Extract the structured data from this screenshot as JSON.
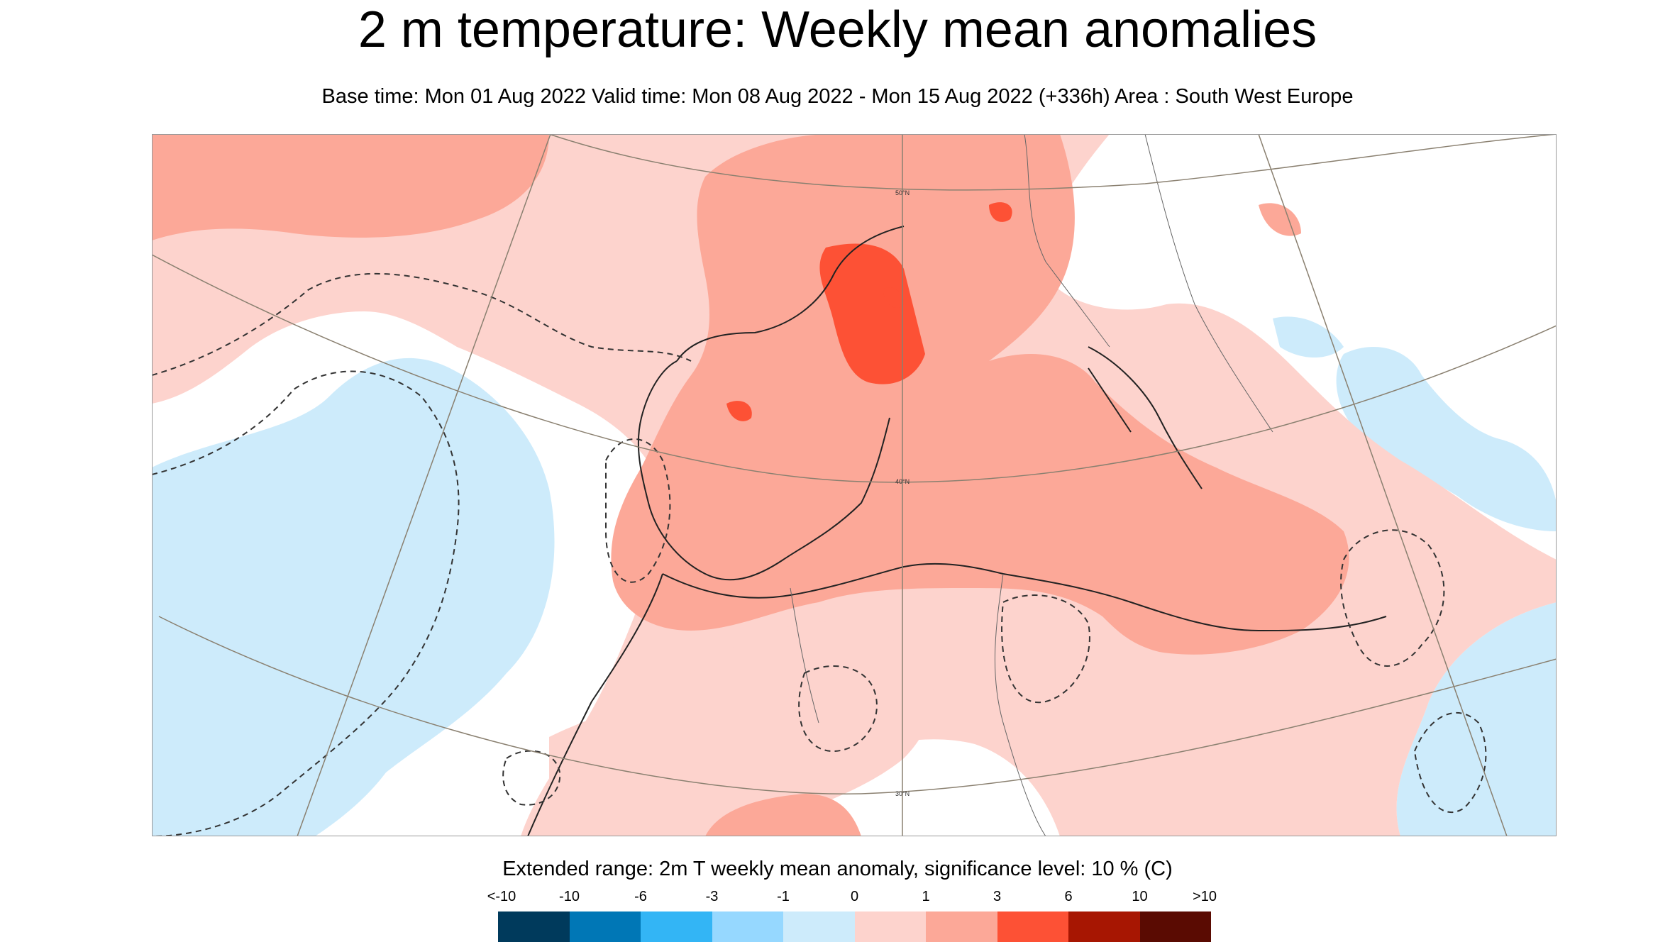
{
  "header": {
    "title": "2 m temperature: Weekly mean anomalies",
    "subtitle": "Base time: Mon 01 Aug 2022 Valid time: Mon 08 Aug 2022 - Mon 15 Aug 2022 (+336h) Area : South West Europe"
  },
  "map": {
    "area": "South West Europe",
    "graticule_labels": [
      "50°N",
      "40°N",
      "30°N"
    ]
  },
  "legend": {
    "title": "Extended range: 2m T weekly mean anomaly, significance level: 10 % (C)",
    "ticks": [
      "<-10",
      "-10",
      "-6",
      "-3",
      "-1",
      "0",
      "1",
      "3",
      "6",
      "10",
      ">10"
    ],
    "colors": [
      "#003a5c",
      "#0077b6",
      "#33b5f5",
      "#96d8ff",
      "#cdebfb",
      "#fdd3cd",
      "#fca898",
      "#fd5135",
      "#a71602",
      "#5a0b02"
    ]
  }
}
